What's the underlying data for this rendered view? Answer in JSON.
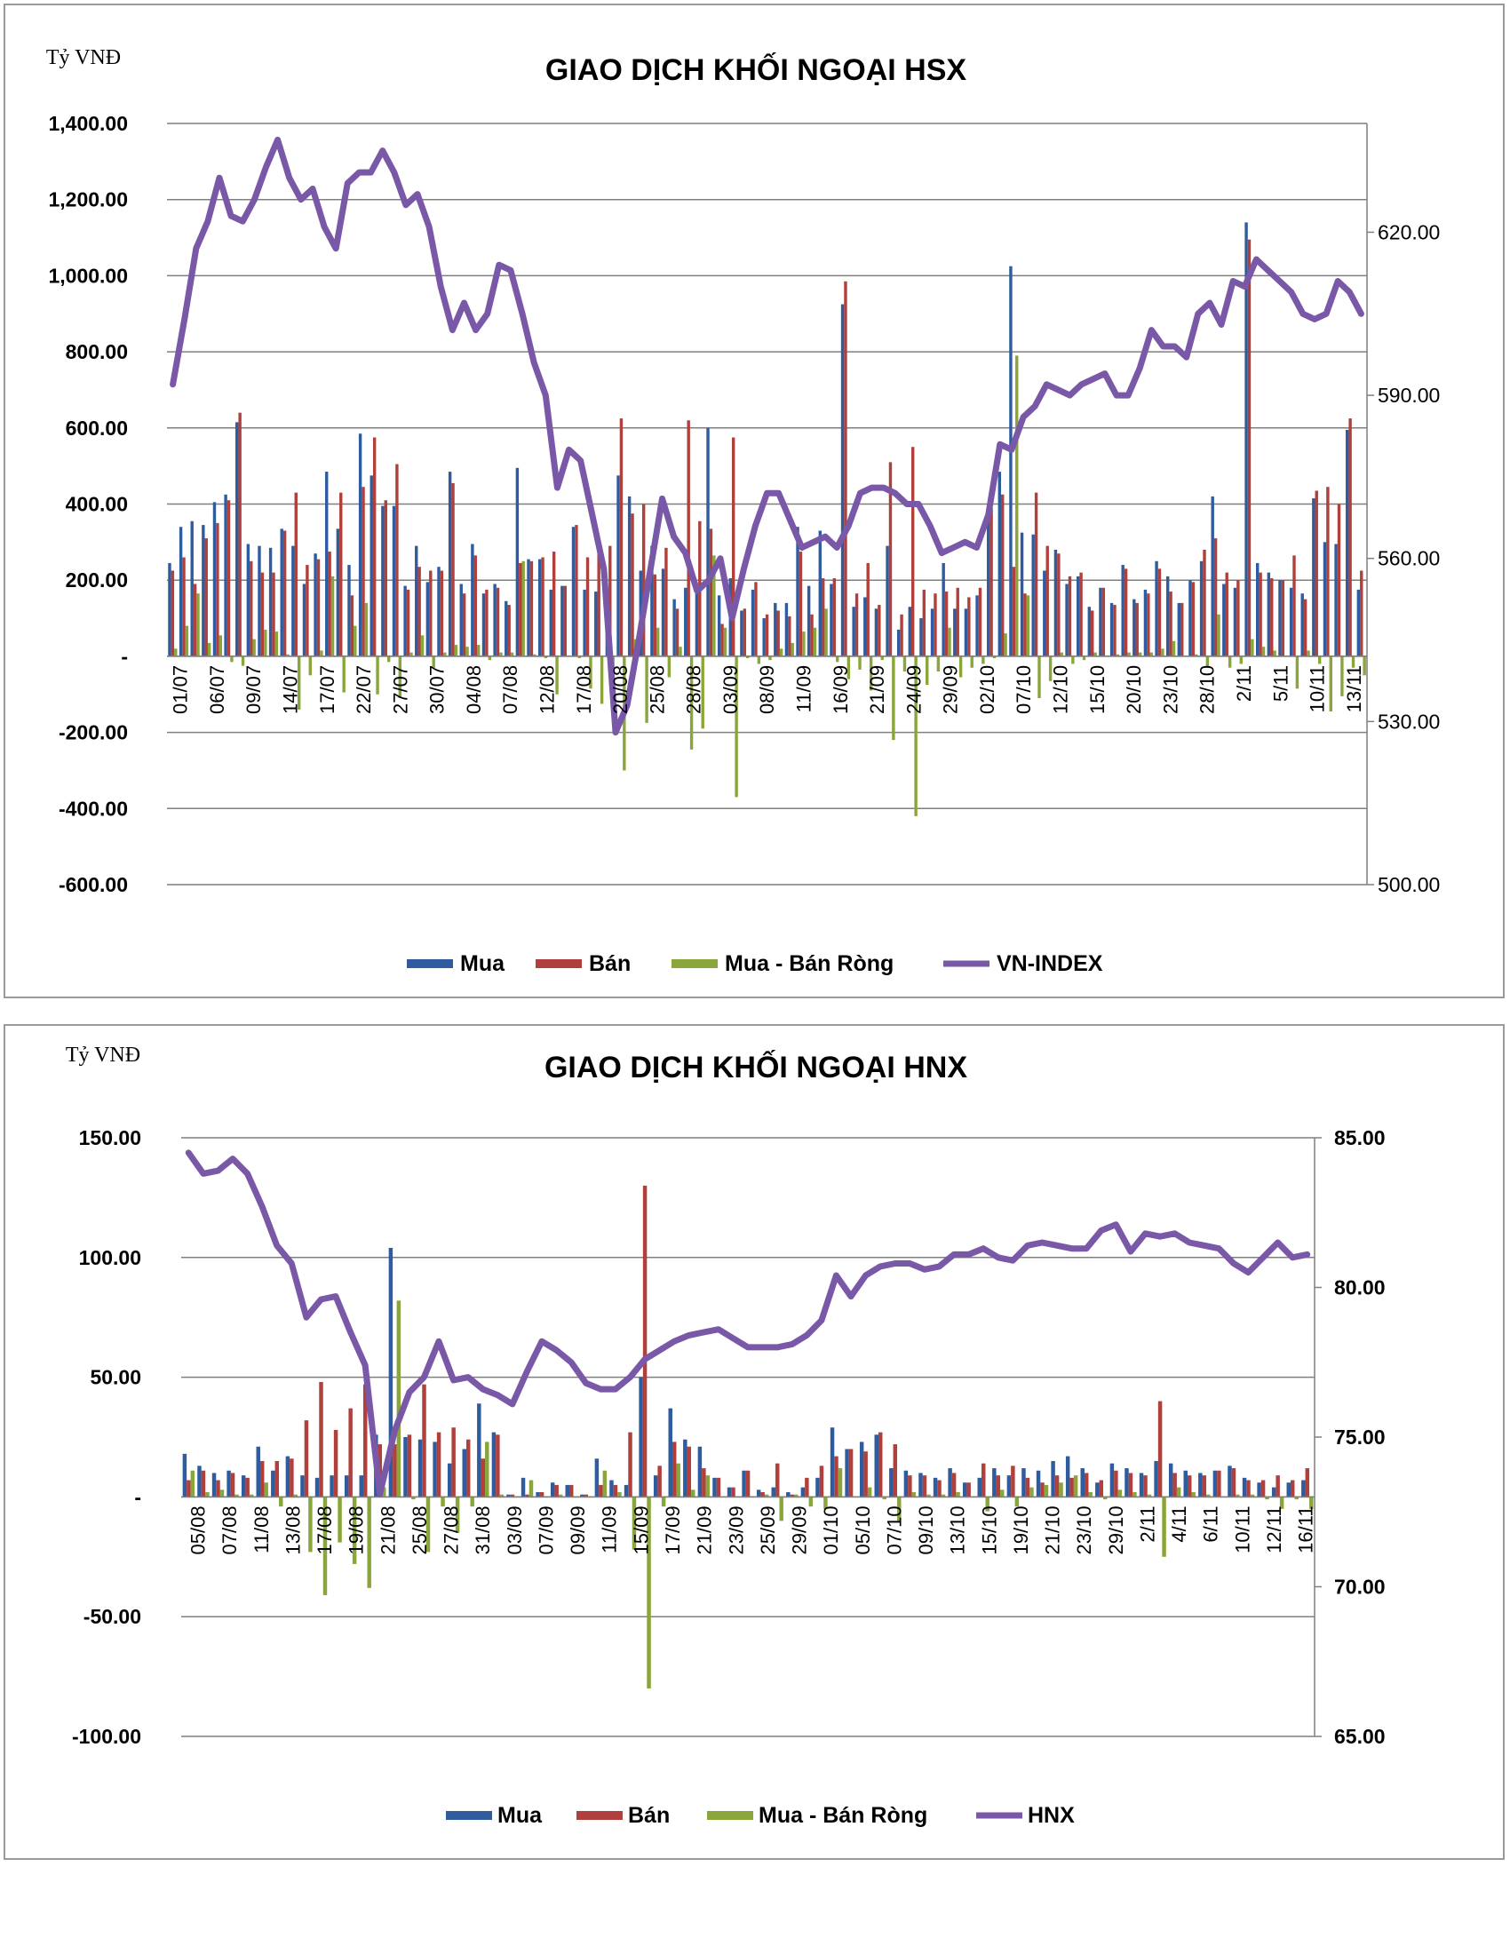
{
  "colors": {
    "mua": "#2e5c9e",
    "ban": "#b0403c",
    "rong": "#8aa63a",
    "index": "#7a58a8",
    "grid": "#7f7f7f"
  },
  "chart_data": [
    {
      "type": "bar",
      "title": "GIAO DỊCH KHỐI NGOẠI HSX",
      "ylabel": "Tỷ VNĐ",
      "ylim": [
        -600,
        1400
      ],
      "y_ticks": [
        "1,400.00",
        "1,200.00",
        "1,000.00",
        "800.00",
        "600.00",
        "400.00",
        "200.00",
        "-",
        "-200.00",
        "-400.00",
        "-600.00"
      ],
      "y2lim": [
        500,
        640
      ],
      "y2_ticks": [
        "620.00",
        "590.00",
        "560.00",
        "530.00",
        "500.00"
      ],
      "x_tick_labels": [
        "01/07",
        "06/07",
        "09/07",
        "14/07",
        "17/07",
        "22/07",
        "27/07",
        "30/07",
        "04/08",
        "07/08",
        "12/08",
        "17/08",
        "20/08",
        "25/08",
        "28/08",
        "03/09",
        "08/09",
        "11/09",
        "16/09",
        "21/09",
        "24/09",
        "29/09",
        "02/10",
        "07/10",
        "12/10",
        "15/10",
        "20/10",
        "23/10",
        "28/10",
        "2/11",
        "5/11",
        "10/11",
        "13/11"
      ],
      "legend": [
        "Mua",
        "Bán",
        "Mua - Bán Ròng",
        "VN-INDEX"
      ],
      "legend_position": "bottom",
      "grid": true,
      "series": [
        {
          "name": "Mua",
          "type": "bar",
          "values": [
            245,
            340,
            355,
            345,
            405,
            425,
            615,
            295,
            290,
            285,
            335,
            290,
            190,
            270,
            485,
            335,
            240,
            585,
            475,
            395,
            395,
            185,
            290,
            195,
            235,
            485,
            190,
            295,
            165,
            190,
            145,
            495,
            255,
            255,
            175,
            185,
            340,
            175,
            170,
            165,
            475,
            420,
            225,
            290,
            230,
            150,
            180,
            165,
            600,
            160,
            205,
            120,
            175,
            100,
            140,
            140,
            340,
            185,
            330,
            190,
            925,
            130,
            155,
            125,
            290,
            70,
            130,
            100,
            125,
            245,
            125,
            125,
            160,
            385,
            485,
            1025,
            325,
            320,
            225,
            280,
            190,
            210,
            130,
            180,
            140,
            240,
            150,
            175,
            250,
            210,
            140,
            200,
            250,
            420,
            190,
            180,
            1140,
            245,
            220,
            200,
            180,
            165,
            415,
            300,
            295,
            595,
            175
          ]
        },
        {
          "name": "Bán",
          "type": "bar",
          "values": [
            225,
            260,
            190,
            310,
            350,
            410,
            640,
            250,
            220,
            220,
            330,
            430,
            240,
            255,
            275,
            430,
            160,
            445,
            575,
            410,
            505,
            175,
            235,
            225,
            225,
            455,
            165,
            265,
            175,
            180,
            135,
            245,
            250,
            260,
            275,
            185,
            345,
            260,
            295,
            290,
            625,
            375,
            400,
            215,
            285,
            125,
            620,
            355,
            335,
            85,
            575,
            125,
            195,
            110,
            120,
            105,
            275,
            110,
            205,
            205,
            985,
            165,
            245,
            135,
            510,
            110,
            550,
            175,
            165,
            170,
            180,
            155,
            180,
            390,
            425,
            235,
            165,
            430,
            290,
            270,
            210,
            220,
            120,
            180,
            135,
            230,
            140,
            165,
            230,
            170,
            140,
            195,
            280,
            310,
            220,
            200,
            1095,
            220,
            205,
            200,
            265,
            150,
            435,
            445,
            400,
            625,
            225
          ]
        },
        {
          "name": "Mua - Bán Ròng",
          "type": "bar",
          "values": [
            20,
            80,
            165,
            35,
            55,
            -15,
            -25,
            45,
            70,
            65,
            5,
            -140,
            -50,
            15,
            210,
            -95,
            80,
            140,
            -100,
            -15,
            -110,
            10,
            55,
            -30,
            10,
            30,
            25,
            30,
            -10,
            10,
            10,
            250,
            5,
            -5,
            -100,
            0,
            -5,
            -85,
            -125,
            -125,
            -300,
            45,
            -175,
            75,
            -55,
            25,
            -245,
            -190,
            265,
            75,
            -370,
            -5,
            -20,
            -10,
            20,
            35,
            65,
            75,
            125,
            -15,
            -60,
            -35,
            -90,
            -10,
            -220,
            -40,
            -420,
            -75,
            -40,
            75,
            -55,
            -30,
            -20,
            -5,
            60,
            790,
            160,
            -110,
            -65,
            10,
            -20,
            -10,
            10,
            0,
            5,
            10,
            10,
            10,
            20,
            40,
            0,
            5,
            -30,
            110,
            -30,
            -20,
            45,
            25,
            15,
            0,
            -85,
            15,
            -20,
            -145,
            -105,
            -30,
            -50
          ]
        },
        {
          "name": "VN-INDEX",
          "type": "line",
          "axis": "right",
          "values": [
            592,
            604,
            617,
            622,
            630,
            623,
            622,
            626,
            632,
            637,
            630,
            626,
            628,
            621,
            617,
            629,
            631,
            631,
            635,
            631,
            625,
            627,
            621,
            610,
            602,
            607,
            602,
            605,
            614,
            613,
            605,
            596,
            590,
            573,
            580,
            578,
            568,
            558,
            528,
            533,
            545,
            558,
            571,
            564,
            561,
            554,
            556,
            560,
            549,
            558,
            566,
            572,
            572,
            567,
            562,
            563,
            564,
            562,
            566,
            572,
            573,
            573,
            572,
            570,
            570,
            566,
            561,
            562,
            563,
            562,
            568,
            581,
            580,
            586,
            588,
            592,
            591,
            590,
            592,
            593,
            594,
            590,
            590,
            595,
            602,
            599,
            599,
            597,
            605,
            607,
            603,
            611,
            610,
            615,
            613,
            611,
            609,
            605,
            604,
            605,
            611,
            609,
            605
          ]
        }
      ]
    },
    {
      "type": "bar",
      "title": "GIAO DỊCH KHỐI NGOẠI HNX",
      "ylabel": "Tỷ VNĐ",
      "ylim": [
        -100,
        150
      ],
      "y_ticks": [
        "150.00",
        "100.00",
        "50.00",
        "-",
        "-50.00",
        "-100.00"
      ],
      "y2lim": [
        65,
        85
      ],
      "y2_ticks": [
        "85.00",
        "80.00",
        "75.00",
        "70.00",
        "65.00"
      ],
      "x_tick_labels": [
        "05/08",
        "07/08",
        "11/08",
        "13/08",
        "17/08",
        "19/08",
        "21/08",
        "25/08",
        "27/08",
        "31/08",
        "03/09",
        "07/09",
        "09/09",
        "11/09",
        "15/09",
        "17/09",
        "21/09",
        "23/09",
        "25/09",
        "29/09",
        "01/10",
        "05/10",
        "07/10",
        "09/10",
        "13/10",
        "15/10",
        "19/10",
        "21/10",
        "23/10",
        "29/10",
        "2/11",
        "4/11",
        "6/11",
        "10/11",
        "12/11",
        "16/11"
      ],
      "legend": [
        "Mua",
        "Bán",
        "Mua - Bán Ròng",
        "HNX"
      ],
      "legend_position": "bottom",
      "grid": true,
      "series": [
        {
          "name": "Mua",
          "type": "bar",
          "values": [
            18,
            13,
            10,
            11,
            9,
            21,
            11,
            17,
            9,
            8,
            9,
            9,
            9,
            26,
            104,
            25,
            24,
            23,
            14,
            20,
            39,
            27,
            1,
            8,
            2,
            6,
            5,
            1,
            16,
            7,
            5,
            50,
            9,
            37,
            24,
            21,
            8,
            4,
            11,
            3,
            4,
            2,
            4,
            8,
            29,
            20,
            23,
            26,
            12,
            11,
            10,
            8,
            12,
            6,
            8,
            12,
            9,
            12,
            11,
            15,
            17,
            12,
            6,
            14,
            12,
            10,
            15,
            14,
            11,
            10,
            11,
            13,
            8,
            6,
            4,
            6,
            7
          ]
        },
        {
          "name": "Bán",
          "type": "bar",
          "values": [
            7,
            11,
            7,
            10,
            8,
            15,
            15,
            16,
            32,
            48,
            28,
            37,
            47,
            22,
            22,
            26,
            47,
            27,
            29,
            24,
            16,
            26,
            1,
            1,
            2,
            5,
            5,
            1,
            5,
            5,
            27,
            130,
            13,
            23,
            21,
            12,
            8,
            4,
            11,
            2,
            14,
            1,
            8,
            13,
            17,
            20,
            19,
            27,
            22,
            9,
            9,
            7,
            10,
            6,
            14,
            9,
            13,
            8,
            6,
            9,
            8,
            10,
            7,
            11,
            10,
            9,
            40,
            10,
            9,
            9,
            11,
            12,
            7,
            7,
            9,
            7,
            12
          ]
        },
        {
          "name": "Mua - Bán Ròng",
          "type": "bar",
          "values": [
            11,
            2,
            3,
            1,
            1,
            6,
            -4,
            1,
            -23,
            -41,
            -19,
            -28,
            -38,
            4,
            82,
            -1,
            -23,
            -4,
            -15,
            -4,
            23,
            1,
            0,
            7,
            0,
            1,
            0,
            0,
            11,
            2,
            -22,
            -80,
            -4,
            14,
            3,
            9,
            0,
            0,
            0,
            1,
            -10,
            1,
            -4,
            -5,
            12,
            0,
            4,
            -1,
            -10,
            2,
            1,
            1,
            2,
            0,
            -6,
            3,
            -4,
            4,
            5,
            6,
            9,
            2,
            -1,
            3,
            2,
            1,
            -25,
            4,
            2,
            1,
            0,
            1,
            1,
            -1,
            -5,
            -1,
            -5
          ]
        },
        {
          "name": "HNX",
          "type": "line",
          "axis": "right",
          "values": [
            84.5,
            83.8,
            83.9,
            84.3,
            83.8,
            82.7,
            81.4,
            80.8,
            79.0,
            79.6,
            79.7,
            78.5,
            77.4,
            73.1,
            75.2,
            76.5,
            77.0,
            78.2,
            76.9,
            77.0,
            76.6,
            76.4,
            76.1,
            77.2,
            78.2,
            77.9,
            77.5,
            76.8,
            76.6,
            76.6,
            77.0,
            77.6,
            77.9,
            78.2,
            78.4,
            78.5,
            78.6,
            78.3,
            78.0,
            78.0,
            78.0,
            78.1,
            78.4,
            78.9,
            80.4,
            79.7,
            80.4,
            80.7,
            80.8,
            80.8,
            80.6,
            80.7,
            81.1,
            81.1,
            81.3,
            81.0,
            80.9,
            81.4,
            81.5,
            81.4,
            81.3,
            81.3,
            81.9,
            82.1,
            81.2,
            81.8,
            81.7,
            81.8,
            81.5,
            81.4,
            81.3,
            80.8,
            80.5,
            81.0,
            81.5,
            81.0,
            81.1
          ]
        }
      ]
    }
  ]
}
